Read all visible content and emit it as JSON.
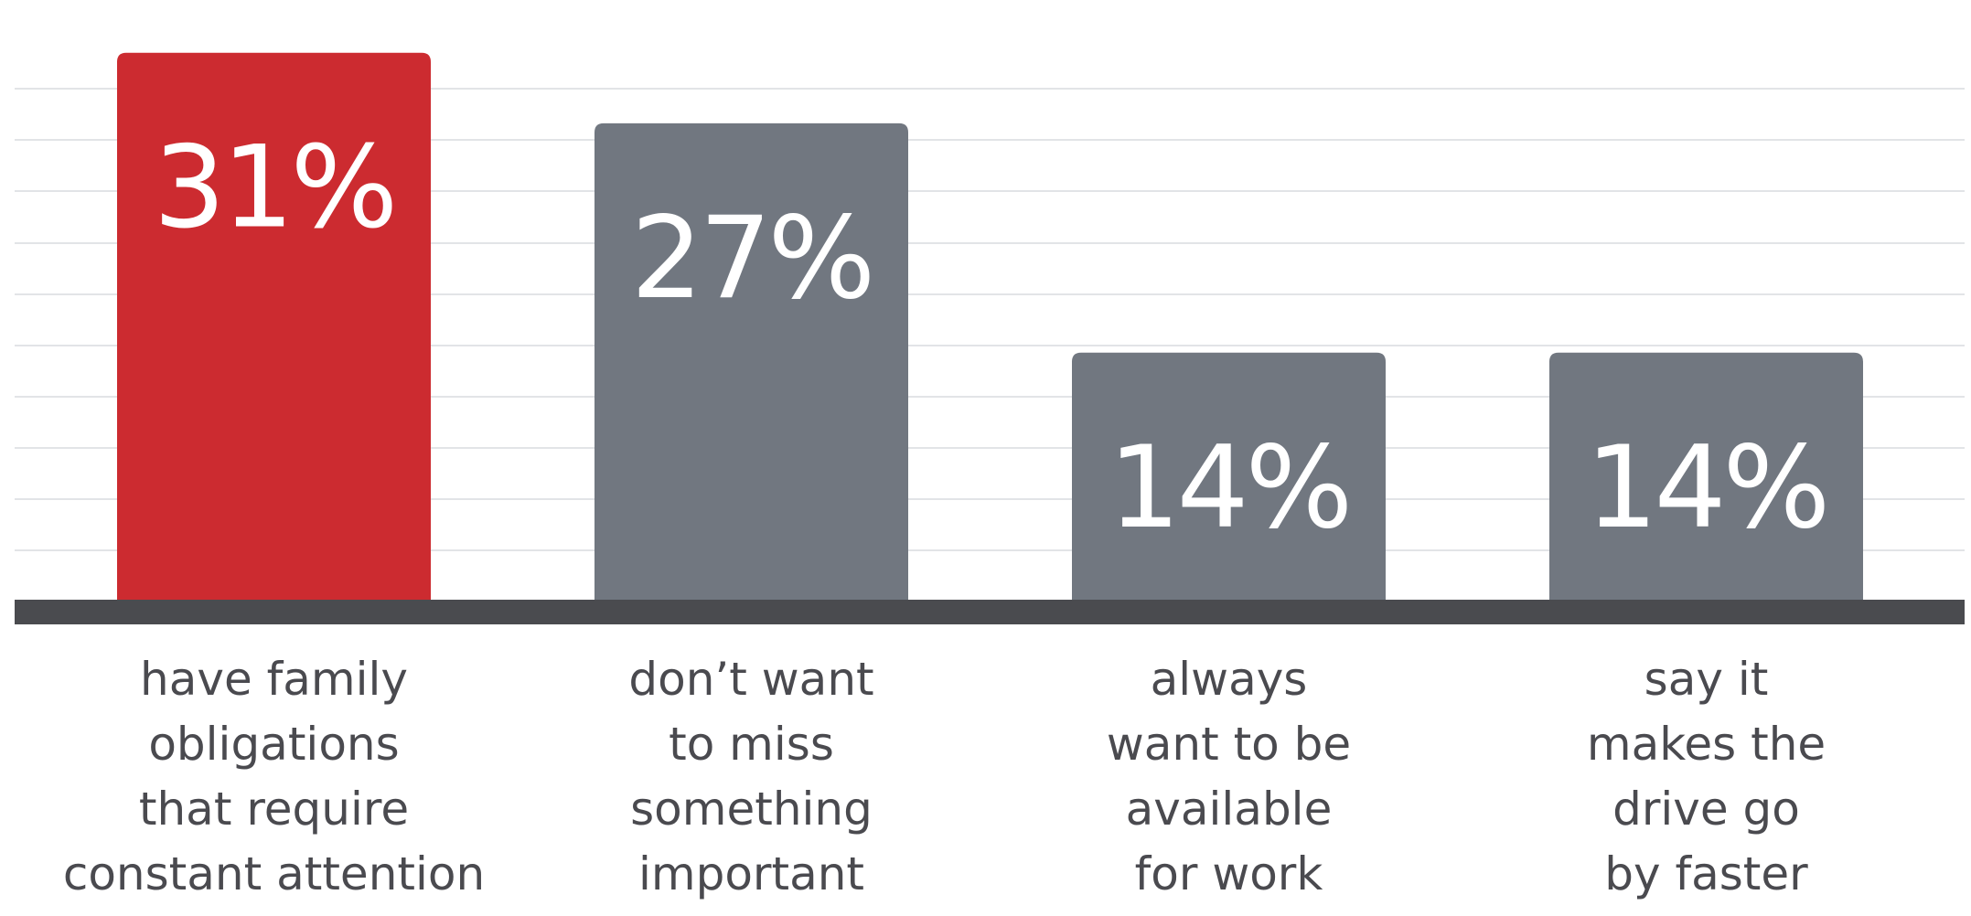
{
  "chart_data": {
    "type": "bar",
    "categories": [
      [
        "have family",
        "obligations",
        "that require",
        "constant attention"
      ],
      [
        "don’t want",
        "to miss",
        "something",
        "important"
      ],
      [
        "always",
        "want to be",
        "available",
        "for work"
      ],
      [
        "say it",
        "makes the",
        "drive go",
        "by faster"
      ]
    ],
    "values": [
      31,
      27,
      14,
      14
    ],
    "value_labels": [
      "31%",
      "27%",
      "14%",
      "14%"
    ],
    "title": "",
    "xlabel": "",
    "ylabel": "",
    "ylim": [
      0,
      33
    ],
    "grid": true,
    "legend": "none",
    "colors": {
      "highlight": "#cc2b30",
      "default": "#717780",
      "axis": "#4a4b4f",
      "grid": "#e2e4e7",
      "label": "#4a4a4f"
    }
  }
}
